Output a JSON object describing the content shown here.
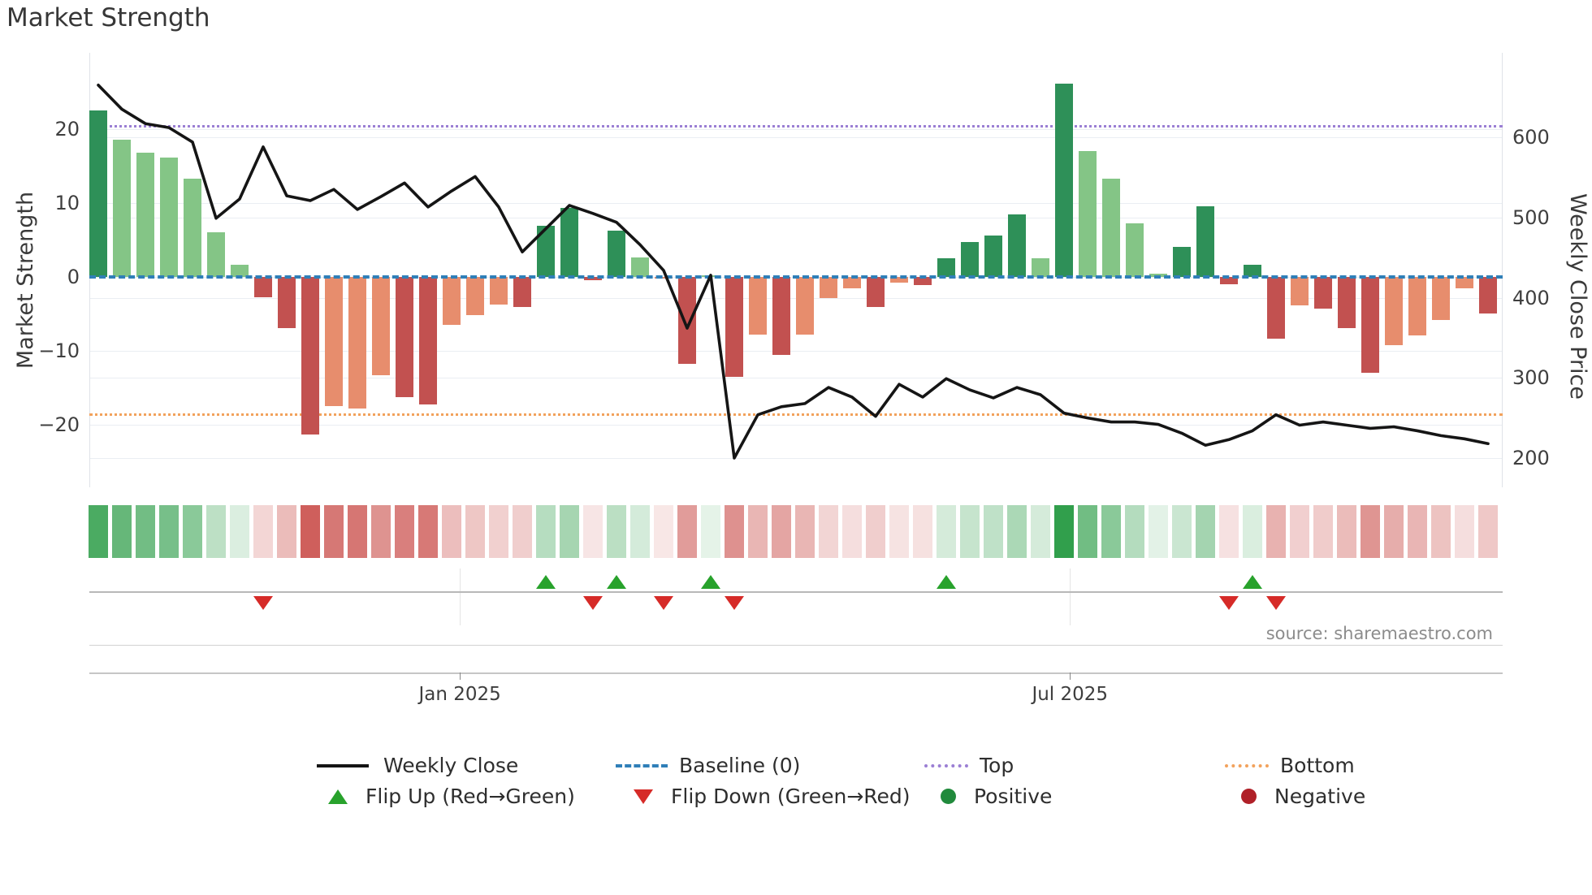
{
  "title": "Market Strength",
  "axes": {
    "left_label": "Market Strength",
    "right_label": "Weekly Close Price",
    "left_ticks": [
      20,
      10,
      0,
      -10,
      -20
    ],
    "right_ticks": [
      600,
      500,
      400,
      300,
      200
    ],
    "x_ticks": [
      {
        "label": "Jan 2025",
        "week": 16.35
      },
      {
        "label": "Jul 2025",
        "week": 42.25
      }
    ]
  },
  "source": "source: sharemaestro.com",
  "legend": {
    "weekly_close": "Weekly Close",
    "baseline": "Baseline (0)",
    "top": "Top",
    "bottom": "Bottom",
    "flip_up": "Flip Up (Red→Green)",
    "flip_down": "Flip Down (Green→Red)",
    "positive": "Positive",
    "negative": "Negative"
  },
  "colors": {
    "bar_dark_green": "#2e9058",
    "bar_light_green": "#84c586",
    "bar_dark_red": "#c25150",
    "bar_salmon": "#e78d6d",
    "line": "#151515",
    "baseline_blue": "#2f7fb8",
    "top_purple": "#9b7fd4",
    "bottom_orange": "#f2a25c",
    "flip_up_green": "#28a22c",
    "flip_down_red": "#d62b28",
    "positive_dot": "#218a3c",
    "negative_dot": "#b02028",
    "strip_green_base": "#2f9e4a",
    "strip_red_base": "#c53e3a"
  },
  "chart_data": {
    "type": "bar+line",
    "x_unit": "week",
    "weeks": 60,
    "title": "Market Strength",
    "left_axis_label": "Market Strength",
    "right_axis_label": "Weekly Close Price",
    "left_range": [
      -27,
      27
    ],
    "right_range": [
      180,
      660
    ],
    "baseline": 0,
    "top_threshold": 20.6,
    "bottom_threshold": -18.5,
    "strength": [
      22.5,
      18.6,
      16.8,
      16.1,
      13.3,
      6.0,
      1.6,
      -2.8,
      -6.9,
      -21.3,
      -17.5,
      -17.8,
      -13.3,
      -16.3,
      -17.3,
      -6.5,
      -5.2,
      -3.7,
      -4.1,
      6.9,
      9.3,
      -0.4,
      6.3,
      2.6,
      -0.2,
      -11.8,
      0.2,
      -13.5,
      -7.8,
      -10.5,
      -7.8,
      -2.9,
      -1.5,
      -4.1,
      -0.8,
      -1.1,
      2.5,
      4.7,
      5.6,
      8.5,
      2.5,
      26.2,
      17.0,
      13.3,
      7.2,
      0.4,
      4.1,
      9.6,
      -1.0,
      1.7,
      -8.4,
      -3.8,
      -4.3,
      -6.9,
      -13.0,
      -9.2,
      -7.9,
      -5.8,
      -1.5,
      -4.9
    ],
    "bar_palette": [
      "dg",
      "lg",
      "lg",
      "lg",
      "lg",
      "lg",
      "lg",
      "dr",
      "dr",
      "dr",
      "sr",
      "sr",
      "sr",
      "dr",
      "dr",
      "sr",
      "sr",
      "sr",
      "dr",
      "dg",
      "dg",
      "dr",
      "dg",
      "lg",
      "sr",
      "dr",
      "lg",
      "dr",
      "sr",
      "dr",
      "sr",
      "sr",
      "sr",
      "dr",
      "sr",
      "dr",
      "dg",
      "dg",
      "dg",
      "dg",
      "lg",
      "dg",
      "lg",
      "lg",
      "lg",
      "lg",
      "dg",
      "dg",
      "dr",
      "dg",
      "dr",
      "sr",
      "dr",
      "dr",
      "dr",
      "sr",
      "sr",
      "sr",
      "sr",
      "dr"
    ],
    "weekly_close": [
      665,
      635,
      617,
      612,
      594,
      499,
      523,
      588,
      527,
      521,
      535,
      510,
      526,
      543,
      513,
      533,
      551,
      513,
      457,
      486,
      515,
      505,
      494,
      466,
      434,
      362,
      428,
      200,
      254,
      264,
      268,
      288,
      276,
      252,
      292,
      276,
      299,
      285,
      275,
      288,
      279,
      256,
      250,
      245,
      245,
      242,
      231,
      216,
      223,
      234,
      254,
      241,
      245,
      241,
      237,
      239,
      234,
      228,
      224,
      218
    ],
    "flip_up_weeks": [
      20,
      23,
      27,
      37,
      50
    ],
    "flip_down_weeks": [
      8,
      22,
      25,
      28,
      49,
      51
    ],
    "legend_position": "bottom",
    "grid": true
  }
}
